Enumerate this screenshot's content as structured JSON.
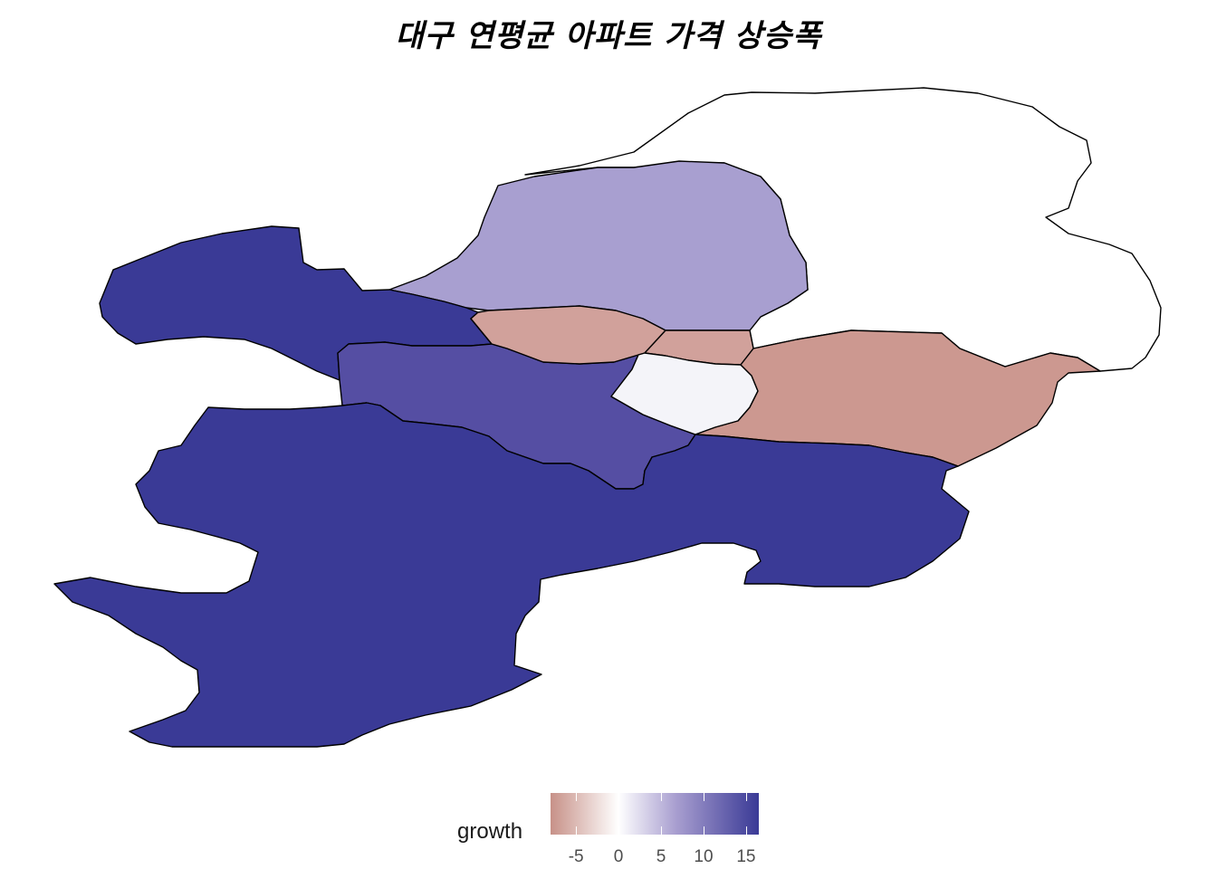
{
  "title": "대구 연평균 아파트 가격 상승폭",
  "legend": {
    "label": "growth",
    "ticks": [
      "-5",
      "0",
      "5",
      "10",
      "15"
    ],
    "tick_values": [
      -5,
      0,
      5,
      10,
      15
    ],
    "range": [
      -8,
      16.5
    ],
    "colors": {
      "low": "#c79188",
      "mid": "#ffffff",
      "high": "#3a3a96"
    }
  },
  "districts": [
    {
      "name": "district-dalseong-north",
      "growth": 15.5,
      "color": "#3a3a96"
    },
    {
      "name": "district-dalseong-south",
      "growth": 15.5,
      "color": "#3a3a96"
    },
    {
      "name": "district-buk",
      "growth": 7.0,
      "color": "#a89fd0"
    },
    {
      "name": "district-dong",
      "growth": 0,
      "color": "#ffffff"
    },
    {
      "name": "district-seo",
      "growth": 12.5,
      "color": "#554ea3"
    },
    {
      "name": "district-jung-west",
      "growth": -5.0,
      "color": "#d1a19b"
    },
    {
      "name": "district-jung-center",
      "growth": -5.0,
      "color": "#d1a19b"
    },
    {
      "name": "district-nam",
      "growth": 0.5,
      "color": "#f4f4f9"
    },
    {
      "name": "district-suseong",
      "growth": -6.0,
      "color": "#cc9890"
    }
  ]
}
